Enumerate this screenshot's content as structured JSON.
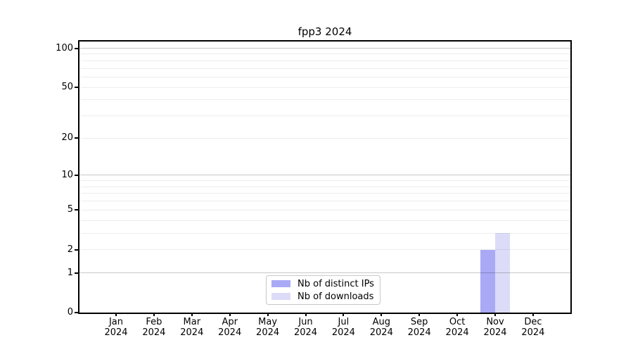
{
  "chart_data": {
    "type": "bar",
    "title": "fpp3 2024",
    "categories": [
      "Jan 2024",
      "Feb 2024",
      "Mar 2024",
      "Apr 2024",
      "May 2024",
      "Jun 2024",
      "Jul 2024",
      "Aug 2024",
      "Sep 2024",
      "Oct 2024",
      "Nov 2024",
      "Dec 2024"
    ],
    "series": [
      {
        "name": "Nb of distinct IPs",
        "color": "#a9a9f6",
        "values": [
          0,
          0,
          0,
          0,
          0,
          0,
          0,
          0,
          0,
          0,
          2,
          0
        ]
      },
      {
        "name": "Nb of downloads",
        "color": "#dcdcf9",
        "values": [
          0,
          0,
          0,
          0,
          0,
          0,
          0,
          0,
          0,
          0,
          3,
          0
        ]
      }
    ],
    "xlabel": "",
    "ylabel": "",
    "yscale": "log1p",
    "ylim": [
      0,
      114
    ],
    "yticks": [
      0,
      1,
      2,
      5,
      10,
      20,
      50,
      100
    ],
    "major_gridlines": [
      1,
      10,
      100
    ],
    "minor_gridlines": [
      2,
      3,
      4,
      5,
      6,
      7,
      8,
      9,
      20,
      30,
      40,
      50,
      60,
      70,
      80,
      90
    ],
    "grid": "horizontal",
    "legend_position": "lower center"
  },
  "colors": {
    "bar_distinct_ips": "#a9a9f6",
    "bar_downloads": "#dcdcf9",
    "grid_major": "#c9c9c9",
    "grid_minor": "#ededed",
    "axis": "#000000",
    "legend_border": "#c8c8c8",
    "background": "#ffffff"
  }
}
